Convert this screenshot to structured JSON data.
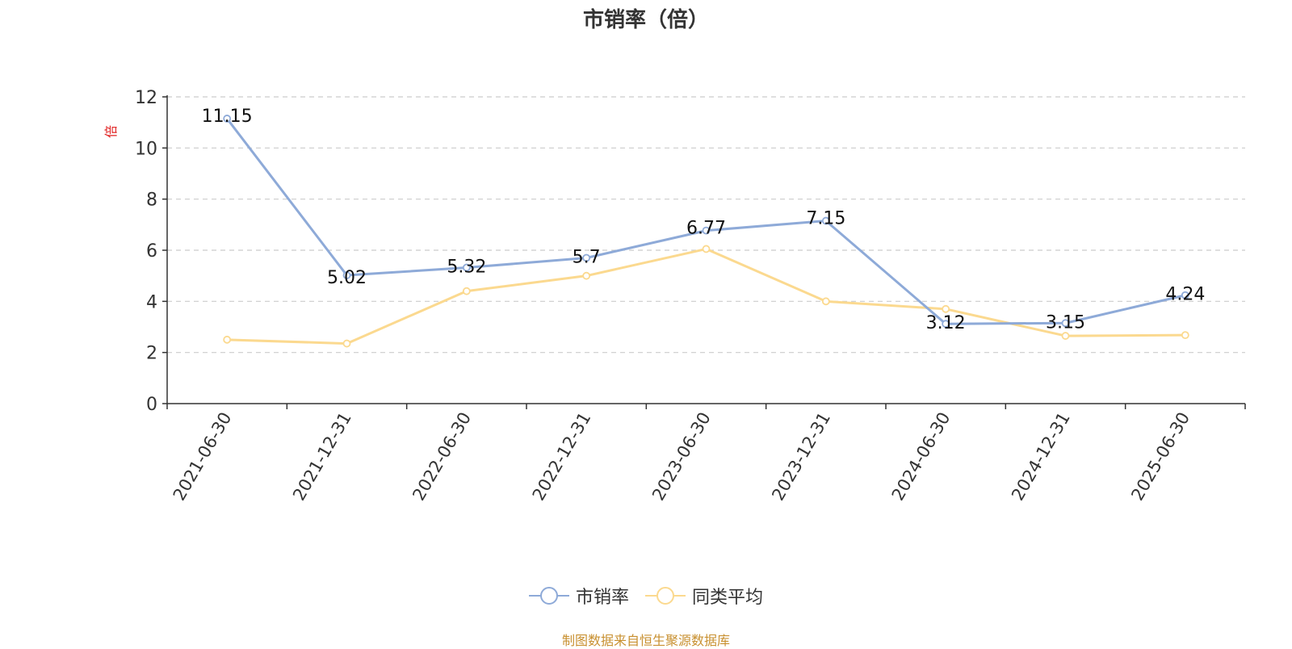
{
  "chart_data": {
    "type": "line",
    "title": "市销率（倍）",
    "ylabel": "倍",
    "ylim": [
      0,
      12
    ],
    "yticks": [
      0,
      2,
      4,
      6,
      8,
      10,
      12
    ],
    "grid": true,
    "legend_position": "bottom-center",
    "categories": [
      "2021-06-30",
      "2021-12-31",
      "2022-06-30",
      "2022-12-31",
      "2023-06-30",
      "2023-12-31",
      "2024-06-30",
      "2024-12-31",
      "2025-06-30"
    ],
    "series": [
      {
        "name": "市销率",
        "color": "#8eaad8",
        "values": [
          11.15,
          5.02,
          5.32,
          5.7,
          6.77,
          7.15,
          3.12,
          3.15,
          4.24
        ],
        "labels": [
          "11.15",
          "5.02",
          "5.32",
          "5.7",
          "6.77",
          "7.15",
          "3.12",
          "3.15",
          "4.24"
        ]
      },
      {
        "name": "同类平均",
        "color": "#fbd98f",
        "values": [
          2.5,
          2.35,
          4.4,
          5.0,
          6.05,
          4.0,
          3.7,
          2.65,
          2.68
        ]
      }
    ]
  },
  "source_note": "制图数据来自恒生聚源数据库"
}
